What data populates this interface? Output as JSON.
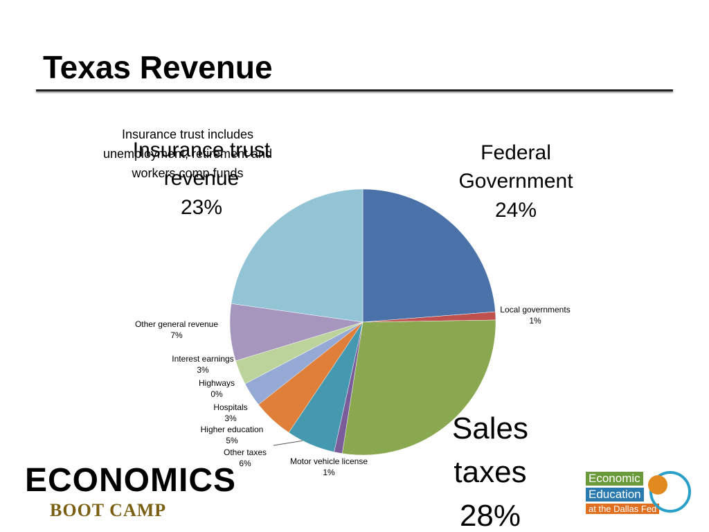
{
  "chart_data": {
    "type": "pie",
    "title": "Texas Revenue",
    "annotation": "Insurance trust includes unemployment, retirement and workers comp funds",
    "categories": [
      "Federal Government",
      "Local governments",
      "Sales taxes",
      "Motor vehicle license",
      "Other taxes",
      "Higher education",
      "Hospitals",
      "Highways",
      "Interest earnings",
      "Other general revenue",
      "Insurance trust revenue"
    ],
    "values": [
      24,
      1,
      28,
      1,
      6,
      5,
      3,
      0,
      3,
      7,
      23
    ],
    "value_labels": [
      "24%",
      "1%",
      "28%",
      "1%",
      "6%",
      "5%",
      "3%",
      "0%",
      "3%",
      "7%",
      "23%"
    ],
    "colors": [
      "#4a72a8",
      "#c0504d",
      "#8aa84f",
      "#7a5c9a",
      "#4498b0",
      "#e07f3a",
      "#94a9d4",
      "#d6a29f",
      "#bcd39b",
      "#a696bd",
      "#93c4d6"
    ]
  },
  "logos": {
    "left": {
      "word": "ECONOMICS",
      "tagline": "BOOT CAMP"
    },
    "right": {
      "line1": "Economic",
      "line2": "Education",
      "line3": "at the Dallas Fed"
    }
  }
}
